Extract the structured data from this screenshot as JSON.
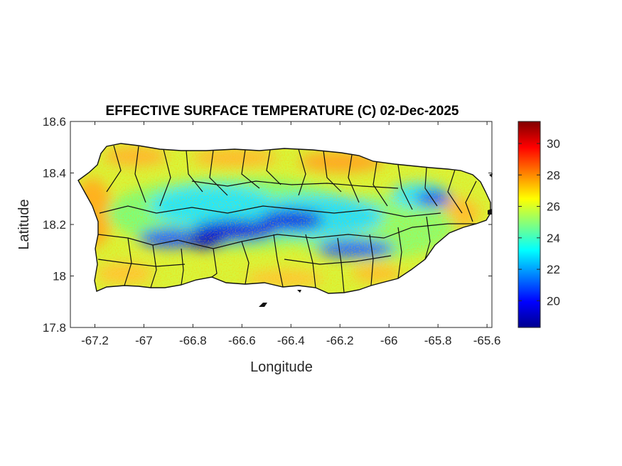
{
  "chart_data": {
    "type": "heatmap",
    "title": "EFFECTIVE SURFACE TEMPERATURE (C) 02-Dec-2025",
    "xlabel": "Longitude",
    "ylabel": "Latitude",
    "xlim": [
      -67.3,
      -65.58
    ],
    "ylim": [
      17.8,
      18.6
    ],
    "xticks": [
      -67.2,
      -67,
      -66.8,
      -66.6,
      -66.4,
      -66.2,
      -66,
      -65.8,
      -65.6
    ],
    "xtick_labels": [
      "-67.2",
      "-67",
      "-66.8",
      "-66.6",
      "-66.4",
      "-66.2",
      "-66",
      "-65.8",
      "-65.6"
    ],
    "yticks": [
      17.8,
      18,
      18.2,
      18.4,
      18.6
    ],
    "ytick_labels": [
      "17.8",
      "18",
      "18.2",
      "18.4",
      "18.6"
    ],
    "colorbar": {
      "colormap": "jet",
      "range": [
        18.3,
        31.4
      ],
      "ticks": [
        20,
        22,
        24,
        26,
        28,
        30
      ],
      "tick_labels": [
        "20",
        "22",
        "24",
        "26",
        "28",
        "30"
      ]
    },
    "grid": false
  }
}
